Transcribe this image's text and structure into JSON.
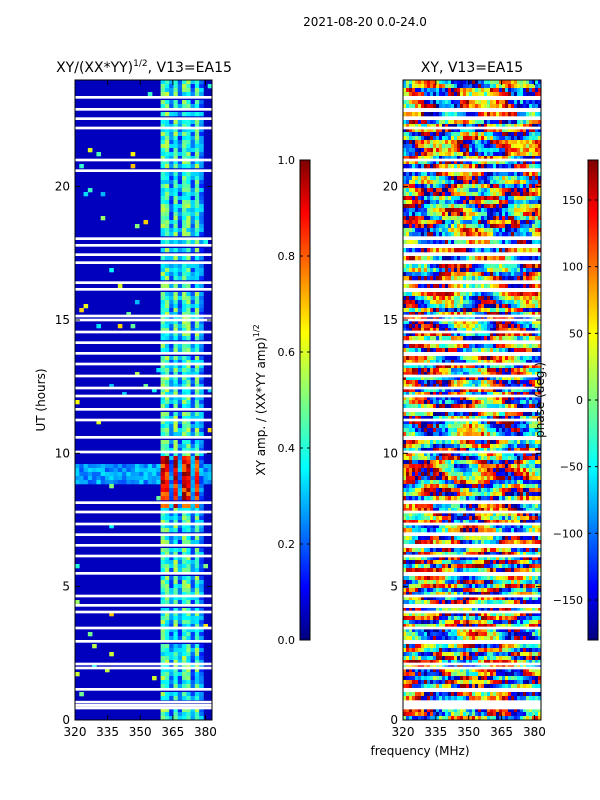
{
  "figure_title": "2021-08-20 0.0-24.0",
  "chart_data": [
    {
      "type": "heatmap",
      "title": "XY/(XX*YY)^{1/2}, V13=EA15",
      "title_text": "XY/(XX*YY)",
      "title_sup": "1/2",
      "title_suffix": ", V13=EA15",
      "xlabel": "",
      "ylabel": "UT (hours)",
      "xlim": [
        320,
        383
      ],
      "ylim": [
        0,
        24
      ],
      "xticks": [
        320,
        335,
        350,
        365,
        380
      ],
      "yticks": [
        0,
        5,
        10,
        15,
        20
      ],
      "colorbar": {
        "label": "XY amp. / (XX*YY amp)^{1/2}",
        "label_text": "XY amp. / (XX*YY amp)",
        "label_sup": "1/2",
        "range": [
          0.0,
          1.0
        ],
        "ticks": [
          "0.0",
          "0.2",
          "0.4",
          "0.6",
          "0.8",
          "1.0"
        ]
      },
      "colormap": "jet",
      "description_values": {
        "background_level": 0.05,
        "active_channel_band_mhz": [
          360,
          380
        ],
        "active_channel_level": 0.4,
        "high_amplitude_ut_range": [
          8.0,
          9.9
        ],
        "high_amplitude_level": 0.9
      }
    },
    {
      "type": "heatmap",
      "title": "XY, V13=EA15",
      "xlabel": "frequency (MHz)",
      "ylabel": "",
      "xlim": [
        320,
        383
      ],
      "ylim": [
        0,
        24
      ],
      "xticks": [
        320,
        335,
        350,
        365,
        380
      ],
      "yticks": [
        0,
        5,
        10,
        15,
        20
      ],
      "colorbar": {
        "label": "phase (deg.)",
        "range": [
          -180,
          180
        ],
        "ticks": [
          "−150",
          "−100",
          "−50",
          "0",
          "50",
          "100",
          "150"
        ]
      },
      "colormap": "jet"
    }
  ],
  "colors": {
    "jet_stops": [
      "#00007f",
      "#0000ff",
      "#007fff",
      "#00ffff",
      "#7fff7f",
      "#ffff00",
      "#ff7f00",
      "#ff0000",
      "#7f0000"
    ],
    "gap_color": "#ffffff",
    "axis_color": "#000000"
  }
}
